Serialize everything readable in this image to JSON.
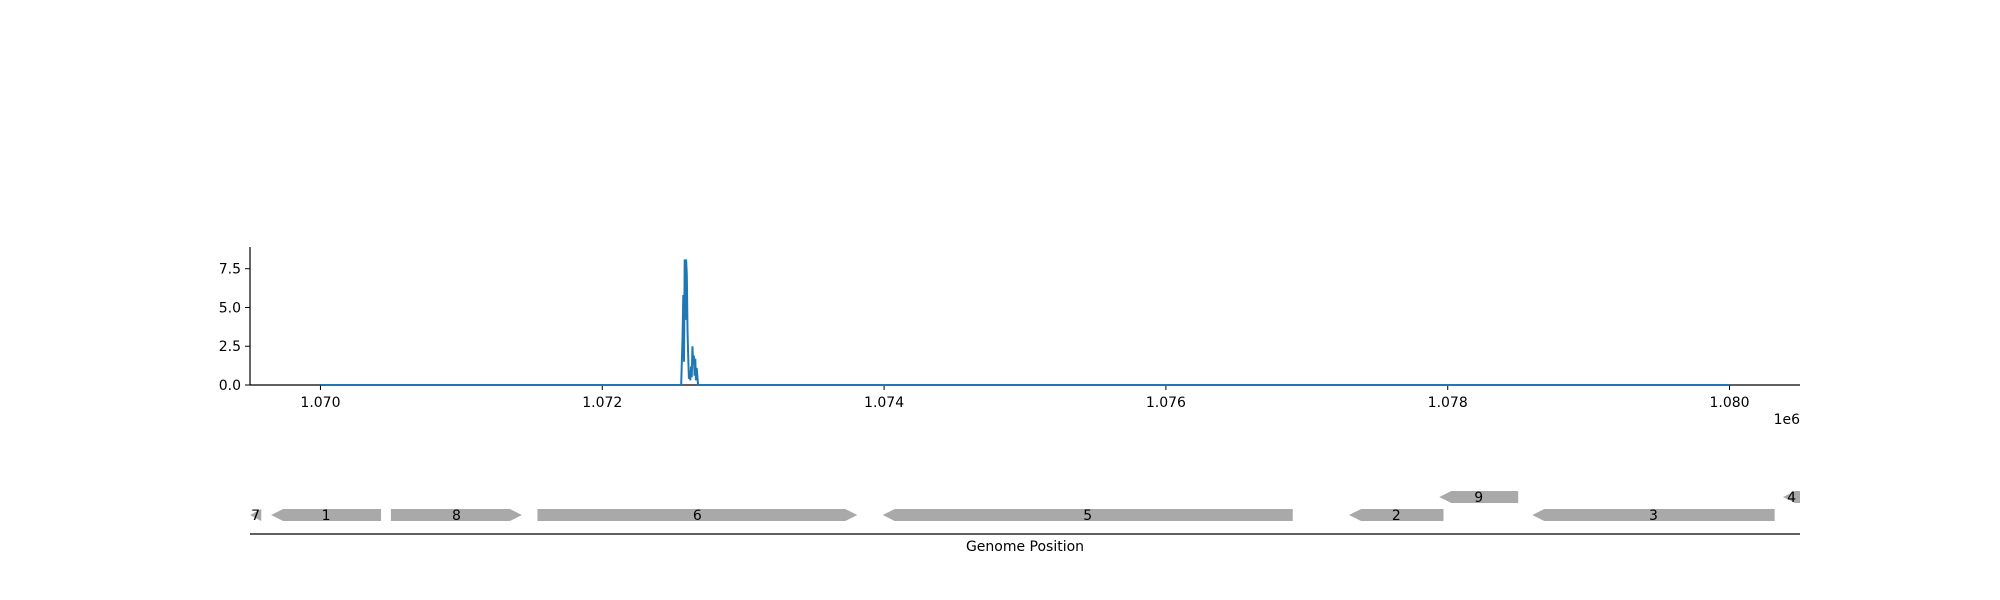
{
  "chart_data": [
    {
      "type": "line",
      "xlim": [
        1069500,
        1080500
      ],
      "ylim": [
        0,
        8.9
      ],
      "xticks": [
        1070000,
        1072000,
        1074000,
        1076000,
        1078000,
        1080000
      ],
      "xtick_labels": [
        "1.070",
        "1.072",
        "1.074",
        "1.076",
        "1.078",
        "1.080"
      ],
      "yticks": [
        0,
        2.5,
        5,
        7.5
      ],
      "ytick_labels": [
        "0.0",
        "2.5",
        "5.0",
        "7.5"
      ],
      "offset_label": "1e6",
      "line_color": "#1f77b4",
      "grid": false,
      "series": [
        {
          "x": [
            1070000,
            1072560,
            1072570,
            1072575,
            1072580,
            1072585,
            1072590,
            1072595,
            1072600,
            1072605,
            1072610,
            1072615,
            1072620,
            1072625,
            1072630,
            1072635,
            1072640,
            1072645,
            1072650,
            1072655,
            1072660,
            1072665,
            1072670,
            1072680,
            1080000
          ],
          "y": [
            0,
            0,
            3.2,
            5.8,
            1.5,
            8.1,
            4.2,
            8.1,
            7.1,
            3.5,
            1.8,
            0.4,
            0.9,
            0.3,
            1.2,
            0.5,
            2.5,
            1.3,
            1.9,
            0.6,
            1.7,
            0.3,
            1.1,
            0,
            0
          ]
        }
      ]
    },
    {
      "type": "gene-track",
      "xlabel": "Genome Position",
      "xlim": [
        1069500,
        1080500
      ],
      "feature_color": "#a9a9a9",
      "features": [
        {
          "label": "7",
          "start": 1069500,
          "end": 1069580,
          "strand": -1,
          "row": 0
        },
        {
          "label": "1",
          "start": 1069650,
          "end": 1070430,
          "strand": -1,
          "row": 0
        },
        {
          "label": "8",
          "start": 1070500,
          "end": 1071430,
          "strand": 1,
          "row": 0
        },
        {
          "label": "6",
          "start": 1071540,
          "end": 1073810,
          "strand": 1,
          "row": 0
        },
        {
          "label": "5",
          "start": 1073990,
          "end": 1076900,
          "strand": -1,
          "row": 0
        },
        {
          "label": "2",
          "start": 1077300,
          "end": 1077970,
          "strand": -1,
          "row": 0
        },
        {
          "label": "9",
          "start": 1077940,
          "end": 1078500,
          "strand": -1,
          "row": 1
        },
        {
          "label": "3",
          "start": 1078600,
          "end": 1080320,
          "strand": -1,
          "row": 0
        },
        {
          "label": "4",
          "start": 1080380,
          "end": 1080500,
          "strand": -1,
          "row": 1
        }
      ]
    }
  ]
}
